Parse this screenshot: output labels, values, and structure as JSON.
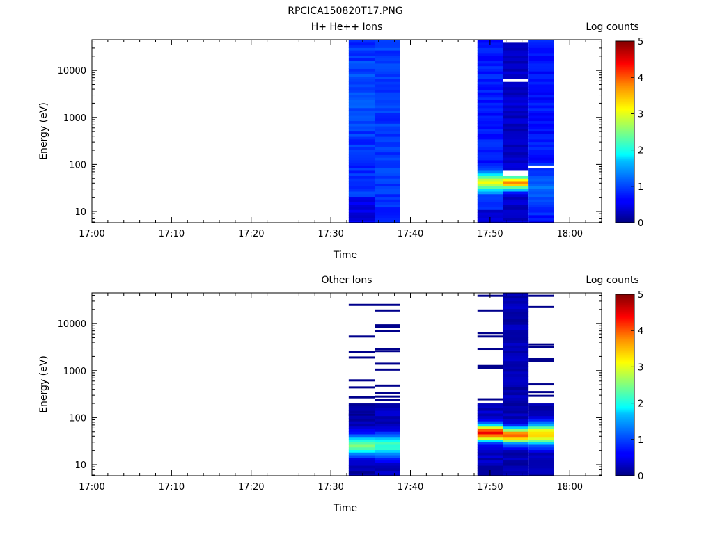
{
  "page_title": "RPCICA150820T17.PNG",
  "chart_data": [
    {
      "type": "heatmap",
      "title": "H+ He++ Ions",
      "xlabel": "Time",
      "ylabel": "Energy (eV)",
      "y_scale": "log",
      "ylim": [
        5.8,
        45000
      ],
      "xlim_minutes": [
        0,
        64
      ],
      "x_ticks": [
        "17:00",
        "17:10",
        "17:20",
        "17:30",
        "17:40",
        "17:50",
        "18:00"
      ],
      "y_ticks": [
        "10",
        "100",
        "1000",
        "10000"
      ],
      "colorbar": {
        "label": "Log counts",
        "min": 0,
        "max": 5,
        "ticks": [
          "0",
          "1",
          "2",
          "3",
          "4",
          "5"
        ]
      },
      "columns": [
        {
          "start": "17:32:15",
          "end": "17:35:30",
          "seed": 11,
          "profile": "hi1",
          "gaps": []
        },
        {
          "start": "17:35:30",
          "end": "17:38:40",
          "seed": 23,
          "profile": "hi2",
          "gaps": []
        },
        {
          "start": "17:48:25",
          "end": "17:51:40",
          "seed": 37,
          "profile": "hi3",
          "gaps": []
        },
        {
          "start": "17:51:40",
          "end": "17:54:50",
          "seed": 41,
          "profile": "hi4",
          "gaps": [
            [
              62,
              68
            ],
            [
              6000,
              6400
            ],
            [
              40000,
              43000
            ]
          ]
        },
        {
          "start": "17:54:50",
          "end": "17:58:00",
          "seed": 53,
          "profile": "hi5",
          "gaps": [
            [
              86,
              92
            ]
          ]
        }
      ]
    },
    {
      "type": "heatmap",
      "title": "Other Ions",
      "xlabel": "Time",
      "ylabel": "Energy (eV)",
      "y_scale": "log",
      "ylim": [
        5.8,
        45000
      ],
      "xlim_minutes": [
        0,
        64
      ],
      "x_ticks": [
        "17:00",
        "17:10",
        "17:20",
        "17:30",
        "17:40",
        "17:50",
        "18:00"
      ],
      "y_ticks": [
        "10",
        "100",
        "1000",
        "10000"
      ],
      "colorbar": {
        "label": "Log counts",
        "min": 0,
        "max": 5,
        "ticks": [
          "0",
          "1",
          "2",
          "3",
          "4",
          "5"
        ]
      },
      "columns": [
        {
          "start": "17:32:15",
          "end": "17:35:30",
          "seed": 61,
          "profile": "ot1",
          "sparse_lines": [
            25000,
            5300,
            2500,
            1900,
            620,
            440,
            270,
            115
          ]
        },
        {
          "start": "17:35:30",
          "end": "17:38:40",
          "seed": 67,
          "profile": "ot2",
          "sparse_lines": [
            25000,
            19000,
            9200,
            8400,
            6900,
            2900,
            2600,
            1400,
            1050,
            480,
            330,
            280,
            240
          ]
        },
        {
          "start": "17:48:25",
          "end": "17:51:40",
          "seed": 71,
          "profile": "ot3",
          "sparse_lines": [
            39000,
            19000,
            6300,
            5300,
            2900,
            1250,
            1150,
            245
          ]
        },
        {
          "start": "17:51:40",
          "end": "17:54:50",
          "seed": 79,
          "profile": "ot4",
          "sparse_lines": []
        },
        {
          "start": "17:54:50",
          "end": "17:58:00",
          "seed": 83,
          "profile": "ot5",
          "sparse_lines": [
            39000,
            22500,
            3600,
            3200,
            1800,
            1600,
            510,
            350,
            290
          ]
        }
      ]
    }
  ]
}
